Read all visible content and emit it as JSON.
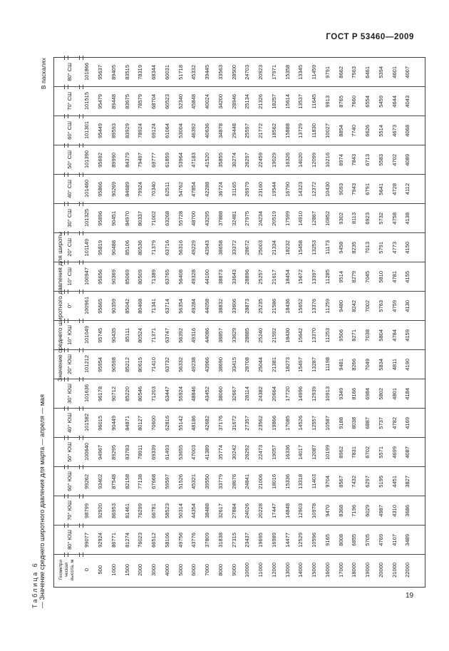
{
  "page": {
    "header": "ГОСТ Р 53460—2009",
    "units_note": "В паскалях",
    "caption_label": "Таблица 6",
    "caption_text": "— Значение среднего широтного давления для марта — апреля — мая",
    "page_number": "19"
  },
  "table": {
    "corner_header": "Геометри\nческая\nвысота, м",
    "span_header": "Значение среднего широтного давления для широты",
    "heights": [
      "0",
      "500",
      "1000",
      "1500",
      "2000",
      "3000",
      "4000",
      "5000",
      "6000",
      "7000",
      "8000",
      "9000",
      "10000",
      "11000",
      "12000",
      "13000",
      "14000",
      "15000",
      "16000",
      "17000",
      "18000",
      "19000",
      "20000",
      "21000",
      "22000"
    ],
    "bands": [
      {
        "lat": "80° СШ",
        "values": [
          101866,
          95637,
          89405,
          83515,
          78319,
          68344,
          60031,
          51718,
          45332,
          39445,
          33563,
          28500,
          24703,
          20923,
          17971,
          15358,
          13345,
          11459,
          9791,
          8662,
          7563,
          6461,
          5394,
          4601,
          4007
        ]
      },
      {
        "lat": "70° СШ",
        "values": [
          101515,
          95479,
          89448,
          83675,
          78579,
          68704,
          60523,
          52340,
          45848,
          40024,
          34200,
          28946,
          25134,
          21326,
          18257,
          15614,
          13537,
          11645,
          9913,
          8765,
          7660,
          6554,
          5459,
          4644,
          4043
        ]
      },
      {
        "lat": "60° СШ",
        "values": [
          101301,
          95449,
          89593,
          83929,
          78924,
          69124,
          61064,
          53004,
          46392,
          40636,
          34878,
          29448,
          25597,
          21772,
          18562,
          15888,
          13729,
          11830,
          10027,
          8854,
          7740,
          6626,
          5514,
          4673,
          4068
        ]
      },
      {
        "lat": "50° СШ",
        "values": [
          101390,
          95692,
          89990,
          84379,
          79497,
          69777,
          61859,
          53964,
          47183,
          41520,
          35855,
          30274,
          26297,
          22459,
          19029,
          16326,
          14020,
          12099,
          10216,
          8974,
          7843,
          6713,
          5583,
          4702,
          4089
        ]
      },
      {
        "lat": "40° СШ",
        "values": [
          101460,
          95866,
          90269,
          84689,
          79924,
          70340,
          62511,
          54762,
          47854,
          42288,
          36724,
          31165,
          26979,
          23160,
          19544,
          16790,
          14323,
          12372,
          10430,
          9093,
          7943,
          6791,
          5641,
          4728,
          4112
        ]
      },
      {
        "lat": "30° СШ",
        "values": [
          101325,
          95896,
          90451,
          84970,
          80337,
          71002,
          63268,
          55728,
          48700,
          43295,
          37888,
          32481,
          27975,
          24234,
          20519,
          17599,
          14910,
          12867,
          10852,
          9302,
          8113,
          6923,
          5732,
          4758,
          4138
        ]
      },
      {
        "lat": "20° СШ",
        "values": [
          101149,
          95819,
          90488,
          85106,
          80536,
          71379,
          63716,
          56316,
          49229,
          43943,
          38658,
          33372,
          28672,
          25003,
          21334,
          18232,
          15458,
          13253,
          11173,
          9458,
          8235,
          7013,
          5791,
          4773,
          4150
        ]
      },
      {
        "lat": "10° СШ",
        "values": [
          100947,
          95656,
          90369,
          85069,
          80509,
          71389,
          63765,
          56408,
          49328,
          44100,
          38873,
          33643,
          28896,
          25257,
          21617,
          18454,
          15672,
          13397,
          11285,
          9514,
          8279,
          7045,
          5810,
          4781,
          4155
        ]
      },
      {
        "lat": "0°",
        "values": [
          100961,
          95665,
          90359,
          85042,
          80468,
          71341,
          63714,
          56354,
          49284,
          44058,
          38832,
          33606,
          28873,
          25235,
          21586,
          18436,
          15652,
          13376,
          11259,
          9480,
          8242,
          7002,
          5763,
          4759,
          4130
        ]
      },
      {
        "lat": "10° ЮШ",
        "values": [
          101049,
          95745,
          90435,
          85111,
          80524,
          71371,
          63747,
          56392,
          49316,
          44086,
          38857,
          33629,
          28885,
          25240,
          21592,
          18430,
          15642,
          13370,
          11253,
          9506,
          8271,
          7038,
          5804,
          4784,
          4159
        ]
      },
      {
        "lat": "20° ЮШ",
        "values": [
          101212,
          95954,
          90598,
          85212,
          80615,
          71410,
          63732,
          56332,
          49238,
          43966,
          38690,
          33415,
          28708,
          25044,
          21381,
          18273,
          15497,
          13287,
          11198,
          9481,
          8266,
          7049,
          5834,
          4811,
          4190
        ]
      },
      {
        "lat": "30° ЮШ",
        "values": [
          101636,
          96178,
          90712,
          85220,
          80546,
          71203,
          63447,
          55924,
          48846,
          43452,
          38060,
          32667,
          28114,
          24382,
          20664,
          17720,
          14996,
          12939,
          10913,
          9349,
          8166,
          6984,
          5802,
          4801,
          4184
        ]
      },
      {
        "lat": "40° ЮШ",
        "values": [
          101582,
          96015,
          90449,
          84871,
          80127,
          70600,
          62816,
          55142,
          48186,
          42682,
          37176,
          31672,
          27357,
          23562,
          19866,
          17085,
          14526,
          12557,
          10587,
          9188,
          8038,
          6887,
          5737,
          4782,
          4169
        ]
      },
      {
        "lat": "50° ЮШ",
        "values": [
          100640,
          94967,
          89295,
          83783,
          78911,
          69339,
          61493,
          53655,
          47003,
          41389,
          35774,
          30242,
          26292,
          22473,
          19057,
          16336,
          14017,
          12087,
          10199,
          8962,
          7831,
          6702,
          5571,
          4699,
          4087
        ]
      },
      {
        "lat": "60° ЮШ",
        "values": [
          99262,
          93402,
          87548,
          82158,
          77138,
          67668,
          59597,
          51526,
          45321,
          39550,
          33779,
          28676,
          24841,
          21006,
          18016,
          15336,
          13318,
          11403,
          9704,
          8567,
          7432,
          6297,
          5195,
          4451,
          3827
        ]
      },
      {
        "lat": "70° ЮШ",
        "values": [
          98799,
          92920,
          86953,
          81461,
          76299,
          66781,
          58523,
          50314,
          44354,
          38488,
          32617,
          27884,
          24026,
          20228,
          17447,
          14848,
          12903,
          10978,
          9470,
          8368,
          7196,
          6029,
          4987,
          4310,
          3686
        ]
      },
      {
        "lat": "80° ЮШ",
        "values": [
          99077,
          92924,
          86771,
          81274,
          76023,
          66512,
          58106,
          49756,
          43776,
          37809,
          31838,
          27315,
          23437,
          19695,
          16989,
          14477,
          12529,
          10596,
          9165,
          8008,
          6855,
          5705,
          4769,
          4107,
          3489
        ]
      }
    ]
  }
}
